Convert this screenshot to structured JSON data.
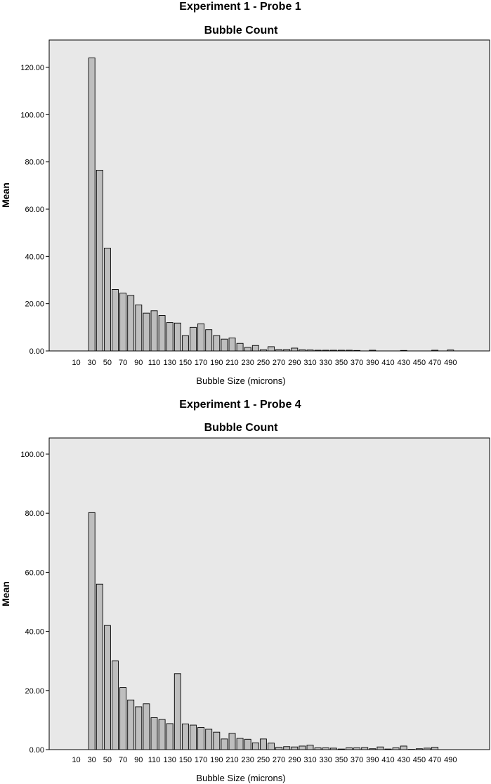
{
  "colors": {
    "plot_background": "#e8e8e8",
    "bar_fill": "#bebebe",
    "bar_stroke": "#000000"
  },
  "chart_data": [
    {
      "type": "bar",
      "title": "Experiment 1 - Probe 1",
      "subtitle": "Bubble Count",
      "xlabel": "Bubble Size (microns)",
      "ylabel": "Mean",
      "ylim": [
        0,
        130
      ],
      "yticks": [
        "0.00",
        "20.00",
        "40.00",
        "60.00",
        "80.00",
        "100.00",
        "120.00"
      ],
      "grid": false,
      "categories": [
        10,
        20,
        30,
        40,
        50,
        60,
        70,
        80,
        90,
        100,
        110,
        120,
        130,
        140,
        150,
        160,
        170,
        180,
        190,
        200,
        210,
        220,
        230,
        240,
        250,
        260,
        270,
        280,
        290,
        300,
        310,
        320,
        330,
        340,
        350,
        360,
        370,
        380,
        390,
        400,
        410,
        420,
        430,
        440,
        450,
        460,
        470,
        480,
        490,
        500
      ],
      "tick_labels": [
        "10",
        "30",
        "50",
        "70",
        "90",
        "110",
        "130",
        "150",
        "170",
        "190",
        "210",
        "230",
        "250",
        "270",
        "290",
        "310",
        "330",
        "350",
        "370",
        "390",
        "410",
        "430",
        "450",
        "470",
        "490"
      ],
      "values": [
        0,
        0,
        124,
        76.5,
        43.5,
        26,
        24.5,
        23.5,
        19.5,
        16,
        17,
        15,
        12,
        11.8,
        6.5,
        10,
        11.5,
        9,
        6.5,
        5,
        5.5,
        3.2,
        1.5,
        2.3,
        0.5,
        1.8,
        0.6,
        0.6,
        1.2,
        0.5,
        0.4,
        0.3,
        0.3,
        0.3,
        0.3,
        0.3,
        0.2,
        0,
        0.3,
        0,
        0,
        0,
        0.2,
        0,
        0,
        0,
        0.3,
        0,
        0.4,
        0
      ]
    },
    {
      "type": "bar",
      "title": "Experiment 1 - Probe 4",
      "subtitle": "Bubble Count",
      "xlabel": "Bubble Size (microns)",
      "ylabel": "Mean",
      "ylim": [
        0,
        105
      ],
      "yticks": [
        "0.00",
        "20.00",
        "40.00",
        "60.00",
        "80.00",
        "100.00"
      ],
      "grid": false,
      "categories": [
        10,
        20,
        30,
        40,
        50,
        60,
        70,
        80,
        90,
        100,
        110,
        120,
        130,
        140,
        150,
        160,
        170,
        180,
        190,
        200,
        210,
        220,
        230,
        240,
        250,
        260,
        270,
        280,
        290,
        300,
        310,
        320,
        330,
        340,
        350,
        360,
        370,
        380,
        390,
        400,
        410,
        420,
        430,
        440,
        450,
        460,
        470,
        480,
        490
      ],
      "tick_labels": [
        "10",
        "30",
        "50",
        "70",
        "90",
        "110",
        "130",
        "150",
        "170",
        "190",
        "210",
        "230",
        "250",
        "270",
        "290",
        "310",
        "330",
        "350",
        "370",
        "390",
        "410",
        "430",
        "450",
        "470",
        "490"
      ],
      "values": [
        0,
        0,
        80.2,
        56,
        42,
        30,
        21,
        16.8,
        14.5,
        15.5,
        10.8,
        10.2,
        8.8,
        25.7,
        8.7,
        8.3,
        7.5,
        6.9,
        5.9,
        3.6,
        5.5,
        3.8,
        3.5,
        2.3,
        3.6,
        2.2,
        0.8,
        1.0,
        0.9,
        1.2,
        1.5,
        0.6,
        0.6,
        0.5,
        0.2,
        0.6,
        0.6,
        0.7,
        0.3,
        0.9,
        0.2,
        0.6,
        1.2,
        0.1,
        0.3,
        0.5,
        0.8,
        0,
        0
      ]
    }
  ]
}
